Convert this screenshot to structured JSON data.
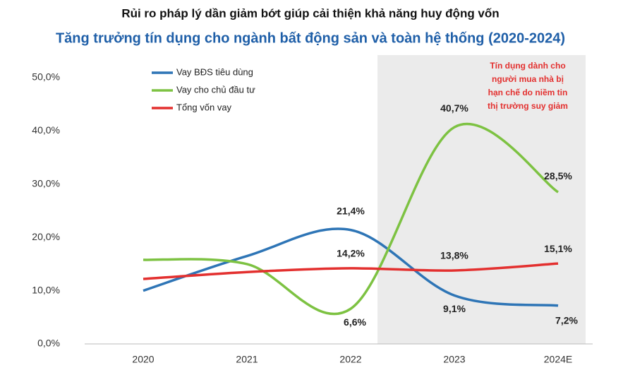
{
  "chart_data": {
    "type": "line",
    "title": "Rủi ro pháp lý dần giảm bớt giúp cải thiện khả năng huy động vốn",
    "subtitle": "Tăng trưởng tín dụng cho ngành bất động sản và toàn hệ thống (2020-2024)",
    "categories": [
      "2020",
      "2021",
      "2022",
      "2023",
      "2024E"
    ],
    "series": [
      {
        "name": "Vay BĐS tiêu dùng",
        "color": "#2e75b6",
        "values": [
          10.0,
          16.5,
          21.4,
          9.1,
          7.2
        ],
        "value_labels": [
          null,
          null,
          "21,4%",
          "9,1%",
          "7,2%"
        ]
      },
      {
        "name": "Vay cho chủ đầu tư",
        "color": "#7dc242",
        "values": [
          15.8,
          15.0,
          6.6,
          40.7,
          28.5
        ],
        "value_labels": [
          null,
          null,
          "6,6%",
          "40,7%",
          "28,5%"
        ]
      },
      {
        "name": "Tổng vốn vay",
        "color": "#e3302f",
        "values": [
          12.2,
          13.5,
          14.2,
          13.8,
          15.1
        ],
        "value_labels": [
          null,
          null,
          "14,2%",
          "13,8%",
          "15,1%"
        ]
      }
    ],
    "ylim": [
      0,
      50
    ],
    "yticks": [
      {
        "value": 0,
        "label": "0,0%"
      },
      {
        "value": 10,
        "label": "10,0%"
      },
      {
        "value": 20,
        "label": "20,0%"
      },
      {
        "value": 30,
        "label": "30,0%"
      },
      {
        "value": 40,
        "label": "40,0%"
      },
      {
        "value": 50,
        "label": "50,0%"
      }
    ],
    "grid": false,
    "legend": "upper left",
    "annotation": [
      "Tín dụng dành cho",
      "người mua nhà bị",
      "hạn chế do niềm tin",
      "thị trường suy giảm"
    ]
  }
}
